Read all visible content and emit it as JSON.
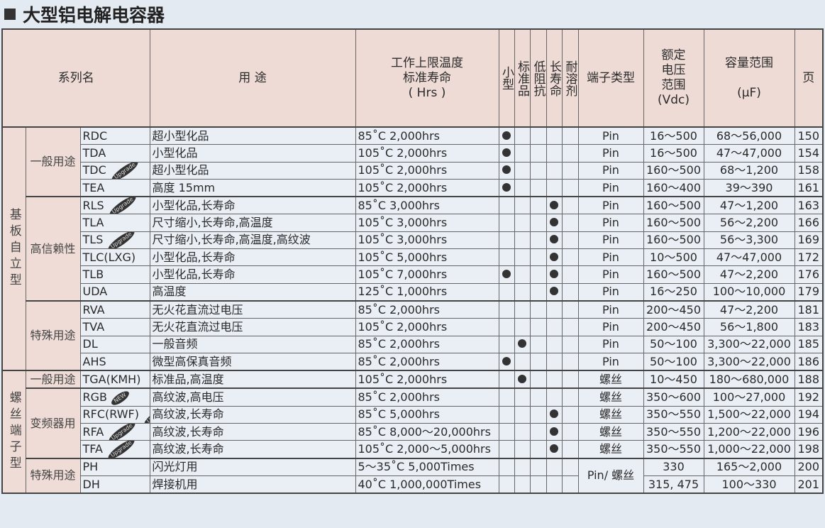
{
  "title": "大型铝电解电容器",
  "headers": {
    "series": "系列名",
    "usage": "用 途",
    "temp": [
      "工作上限温度",
      "标准寿命",
      "( Hrs )"
    ],
    "flags": [
      "小型",
      "标准品",
      "低阻抗",
      "长寿命",
      "耐溶剂"
    ],
    "terminal": "端子类型",
    "voltage": [
      "额定",
      "电压",
      "范围",
      "(Vdc)"
    ],
    "capacity": [
      "容量范围",
      "(μF)"
    ],
    "page": "页"
  },
  "groups": [
    {
      "name": "基板自立型",
      "subgroups": [
        {
          "name": "一般用途",
          "rows": [
            {
              "series": "RDC",
              "usage": "超小型化品",
              "temp": "85˚C  2,000hrs",
              "flags": [
                1,
                0,
                0,
                0,
                0
              ],
              "terminal": "Pin",
              "voltage": "16～500",
              "capacity": "68～56,000",
              "page": "150"
            },
            {
              "series": "TDA",
              "usage": "小型化品",
              "temp": "105˚C  2,000hrs",
              "flags": [
                1,
                0,
                0,
                0,
                0
              ],
              "terminal": "Pin",
              "voltage": "16～500",
              "capacity": "47～47,000",
              "page": "154"
            },
            {
              "series": "TDC",
              "badge": "Upgrade",
              "usage": "超小型化品",
              "temp": "105˚C  2,000hrs",
              "flags": [
                1,
                0,
                0,
                0,
                0
              ],
              "terminal": "Pin",
              "voltage": "160～500",
              "capacity": "68～1,200",
              "page": "158"
            },
            {
              "series": "TEA",
              "usage": "高度 15mm",
              "temp": "105˚C  2,000hrs",
              "flags": [
                1,
                0,
                0,
                0,
                0
              ],
              "terminal": "Pin",
              "voltage": "160～400",
              "capacity": "39～390",
              "page": "161"
            }
          ]
        },
        {
          "name": "高信赖性",
          "rows": [
            {
              "series": "RLS",
              "badge": "Upgrade",
              "usage": "小型化品,长寿命",
              "temp": "85˚C  3,000hrs",
              "flags": [
                0,
                0,
                0,
                1,
                0
              ],
              "terminal": "Pin",
              "voltage": "160～500",
              "capacity": "47～1,200",
              "page": "163"
            },
            {
              "series": "TLA",
              "usage": "尺寸缩小,长寿命,高温度",
              "temp": "105˚C  3,000hrs",
              "flags": [
                0,
                0,
                0,
                1,
                0
              ],
              "terminal": "Pin",
              "voltage": "160～500",
              "capacity": "56～2,200",
              "page": "166"
            },
            {
              "series": "TLS",
              "badge": "Upgrade",
              "usage": "尺寸缩小,长寿命,高温度,高纹波",
              "temp": "105˚C  3,000hrs",
              "flags": [
                0,
                0,
                0,
                1,
                0
              ],
              "terminal": "Pin",
              "voltage": "160～500",
              "capacity": "56～3,300",
              "page": "169"
            },
            {
              "series": "TLC(LXG)",
              "usage": "小型化品,长寿命",
              "temp": "105˚C  5,000hrs",
              "flags": [
                0,
                0,
                0,
                1,
                0
              ],
              "terminal": "Pin",
              "voltage": "10～500",
              "capacity": "47～47,000",
              "page": "172"
            },
            {
              "series": "TLB",
              "usage": "小型化品,长寿命",
              "temp": "105˚C  7,000hrs",
              "flags": [
                1,
                0,
                0,
                1,
                0
              ],
              "terminal": "Pin",
              "voltage": "160～500",
              "capacity": "47～2,200",
              "page": "176"
            },
            {
              "series": "UDA",
              "usage": "高温度",
              "temp": "125˚C  1,000hrs",
              "flags": [
                0,
                0,
                0,
                1,
                0
              ],
              "terminal": "Pin",
              "voltage": "16～250",
              "capacity": "100～10,000",
              "page": "179"
            }
          ]
        },
        {
          "name": "特殊用途",
          "rows": [
            {
              "series": "RVA",
              "usage": "无火花直流过电压",
              "temp": "85˚C  2,000hrs",
              "flags": [
                0,
                0,
                0,
                0,
                0
              ],
              "terminal": "Pin",
              "voltage": "200～450",
              "capacity": "47～2,200",
              "page": "181"
            },
            {
              "series": "TVA",
              "usage": "无火花直流过电压",
              "temp": "105˚C  2,000hrs",
              "flags": [
                0,
                0,
                0,
                0,
                0
              ],
              "terminal": "Pin",
              "voltage": "200～450",
              "capacity": "56～1,800",
              "page": "183"
            },
            {
              "series": "DL",
              "usage": "一般音频",
              "temp": "85˚C  2,000hrs",
              "flags": [
                0,
                1,
                0,
                0,
                0
              ],
              "terminal": "Pin",
              "voltage": "50～100",
              "capacity": "3,300～22,000",
              "page": "185"
            },
            {
              "series": "AHS",
              "usage": "微型高保真音频",
              "temp": "85˚C  2,000hrs",
              "flags": [
                1,
                0,
                0,
                0,
                0
              ],
              "terminal": "Pin",
              "voltage": "50～100",
              "capacity": "3,300～22,000",
              "page": "186"
            }
          ]
        }
      ]
    },
    {
      "name": "螺丝端子型",
      "subgroups": [
        {
          "name": "一般用途",
          "rows": [
            {
              "series": "TGA(KMH)",
              "usage": "标准品,高温度",
              "temp": "105˚C  2,000hrs",
              "flags": [
                0,
                1,
                0,
                0,
                0
              ],
              "terminal": "螺丝",
              "voltage": "10～450",
              "capacity": "180～680,000",
              "page": "188"
            }
          ]
        },
        {
          "name": "变频器用",
          "rows": [
            {
              "series": "RGB",
              "badge": "NEW",
              "usage": "高纹波,高电压",
              "temp": "85˚C  2,000hrs",
              "flags": [
                0,
                0,
                0,
                0,
                0
              ],
              "terminal": "螺丝",
              "voltage": "350～600",
              "capacity": "100～27,000",
              "page": "192"
            },
            {
              "series": "RFC(RWF)",
              "badge": "Upgrade",
              "usage": "高纹波,长寿命",
              "temp": "85˚C  5,000hrs",
              "flags": [
                0,
                0,
                0,
                1,
                0
              ],
              "terminal": "螺丝",
              "voltage": "350～550",
              "capacity": "1,500～22,000",
              "page": "194"
            },
            {
              "series": "RFA",
              "badge": "Upgrade",
              "usage": "高纹波,长寿命",
              "temp": "85˚C  8,000～20,000hrs",
              "flags": [
                0,
                0,
                0,
                1,
                0
              ],
              "terminal": "螺丝",
              "voltage": "350～550",
              "capacity": "1,200～22,000",
              "page": "196"
            },
            {
              "series": "TFA",
              "badge": "Upgrade",
              "usage": "高纹波,长寿命",
              "temp": "105˚C  2,000～5,000hrs",
              "flags": [
                0,
                0,
                0,
                1,
                0
              ],
              "terminal": "螺丝",
              "voltage": "350～550",
              "capacity": "1,000～22,000",
              "page": "198"
            }
          ]
        },
        {
          "name": "特殊用途",
          "terminal_merged": "Pin/ 螺丝",
          "rows": [
            {
              "series": "PH",
              "usage": "闪光灯用",
              "temp": "5～35˚C  5,000Times",
              "flags": [
                0,
                0,
                0,
                0,
                0
              ],
              "voltage": "330",
              "capacity": "165～2,000",
              "page": "200"
            },
            {
              "series": "DH",
              "usage": "焊接机用",
              "temp": "40˚C  1,000,000Times",
              "flags": [
                0,
                0,
                0,
                0,
                0
              ],
              "voltage": "315, 475",
              "capacity": "100～330",
              "page": "201"
            }
          ]
        }
      ]
    }
  ]
}
